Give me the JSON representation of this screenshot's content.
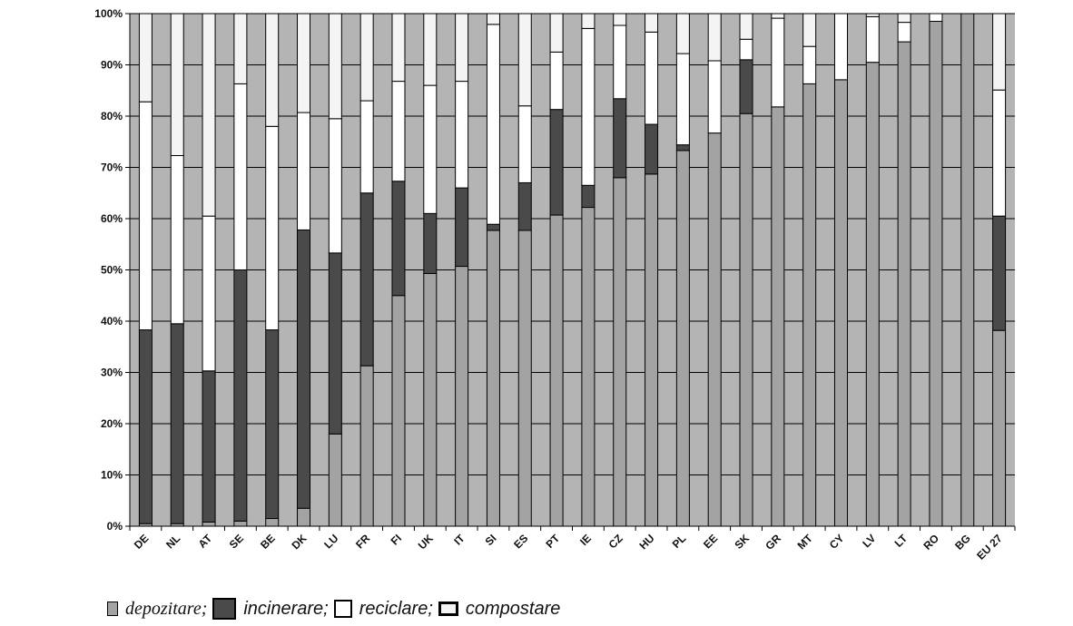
{
  "chart_data": {
    "type": "bar",
    "stacked": true,
    "percent": true,
    "ylim": [
      0,
      100
    ],
    "yticks": [
      "0%",
      "10%",
      "20%",
      "30%",
      "40%",
      "50%",
      "60%",
      "70%",
      "80%",
      "90%",
      "100%"
    ],
    "grid": true,
    "legend_position": "bottom",
    "categories": [
      "DE",
      "NL",
      "AT",
      "SE",
      "BE",
      "DK",
      "LU",
      "FR",
      "FI",
      "UK",
      "IT",
      "SI",
      "ES",
      "PT",
      "IE",
      "CZ",
      "HU",
      "PL",
      "EE",
      "SK",
      "GR",
      "MT",
      "CY",
      "LV",
      "LT",
      "RO",
      "BG",
      "EU 27"
    ],
    "series": [
      {
        "name": "depozitare",
        "color": "#a3a3a3",
        "values": [
          0.5,
          0.5,
          0.8,
          1,
          1.5,
          3.5,
          18,
          31.3,
          45,
          49.3,
          50.7,
          57.7,
          57.7,
          60.7,
          62.2,
          68,
          68.7,
          73.3,
          76.7,
          80.5,
          81.8,
          86.3,
          87.1,
          90.5,
          94.5,
          98.5,
          100,
          38.2
        ]
      },
      {
        "name": "incinerare",
        "color": "#4a4a4a",
        "values": [
          37.8,
          39,
          29.5,
          49,
          36.8,
          54.3,
          35.3,
          33.7,
          22.3,
          11.7,
          15.3,
          1.2,
          9.3,
          20.6,
          4.3,
          15.4,
          9.7,
          1.1,
          0,
          10.5,
          0,
          0,
          0,
          0,
          0,
          0,
          0,
          22.3
        ]
      },
      {
        "name": "reciclare",
        "color": "#ffffff",
        "values": [
          44.5,
          32.8,
          30.2,
          36.3,
          39.7,
          22.9,
          26.2,
          18,
          19.5,
          25,
          20.8,
          39,
          15,
          11.2,
          30.6,
          14.3,
          18,
          17.8,
          14.1,
          4,
          17.3,
          7.3,
          12.9,
          8.9,
          3.8,
          1.5,
          0,
          24.6
        ]
      },
      {
        "name": "compostare",
        "color": "#f4f4f4",
        "values": [
          17.2,
          27.7,
          39.5,
          13.7,
          22,
          19.3,
          20.5,
          17,
          13.2,
          14,
          13.2,
          2.1,
          18,
          7.5,
          2.9,
          2.3,
          3.6,
          7.8,
          9.2,
          5,
          0.9,
          6.4,
          0,
          0.6,
          1.7,
          0,
          0,
          14.9
        ]
      }
    ]
  },
  "legend": {
    "depozitare": "depozitare;",
    "incinerare": "incinerare;",
    "reciclare": "reciclare;",
    "compostare": "compostare"
  }
}
